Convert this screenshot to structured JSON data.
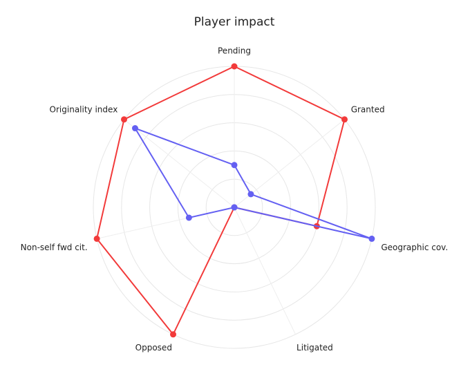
{
  "chart_data": {
    "type": "radar",
    "title": "Player impact",
    "categories": [
      "Pending",
      "Granted",
      "Geographic cov.",
      "Litigated",
      "Opposed",
      "Non-self fwd cit.",
      "Originality index"
    ],
    "rlim": [
      0,
      5
    ],
    "rticks": [
      1,
      2,
      3,
      4,
      5
    ],
    "grid": true,
    "series": [
      {
        "color": "#f23a3a",
        "values": [
          5,
          5,
          3,
          0,
          5,
          5,
          5
        ]
      },
      {
        "color": "#6460f2",
        "values": [
          1.5,
          0.75,
          5,
          0,
          0,
          1.65,
          4.5
        ]
      }
    ]
  }
}
